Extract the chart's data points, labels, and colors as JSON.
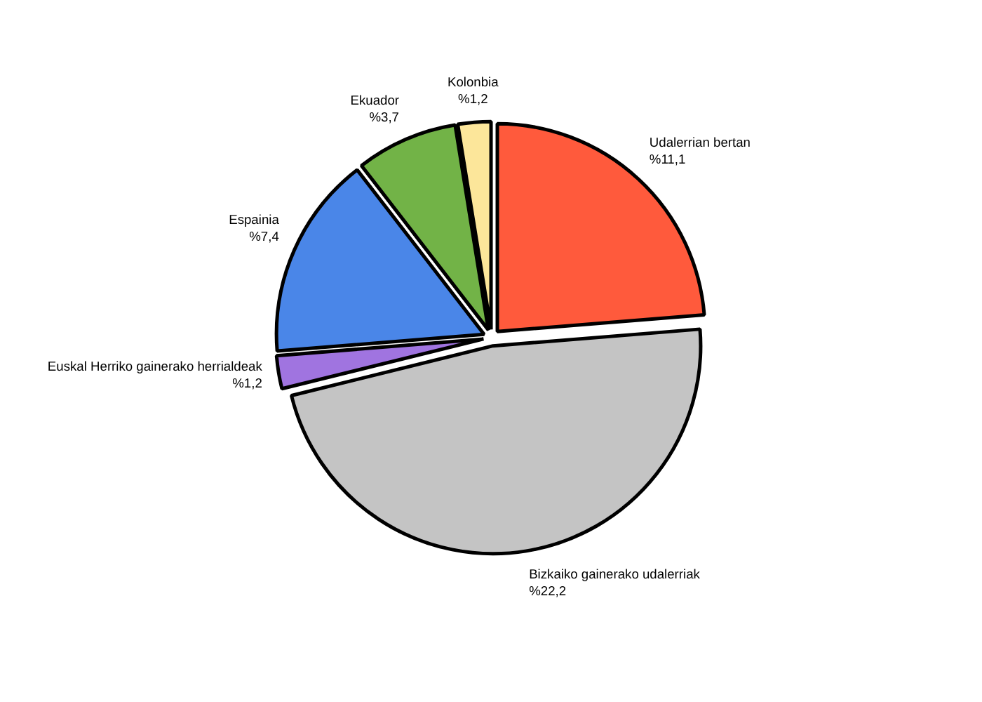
{
  "chart_data": {
    "type": "pie",
    "categories": [
      "Udalerrian bertan",
      "Bizkaiko gainerako udalerriak",
      "Euskal Herriko gainerako herrialdeak",
      "Espainia",
      "Ekuador",
      "Kolonbia"
    ],
    "values": [
      11.1,
      22.2,
      1.2,
      7.4,
      3.7,
      1.2
    ],
    "value_labels": [
      "%11,1",
      "%22,2",
      "%1,2",
      "%7,4",
      "%3,7",
      "%1,2"
    ],
    "colors": [
      "#ff5a3c",
      "#c4c4c4",
      "#a074e0",
      "#4a86e8",
      "#72b347",
      "#fce69a"
    ]
  }
}
